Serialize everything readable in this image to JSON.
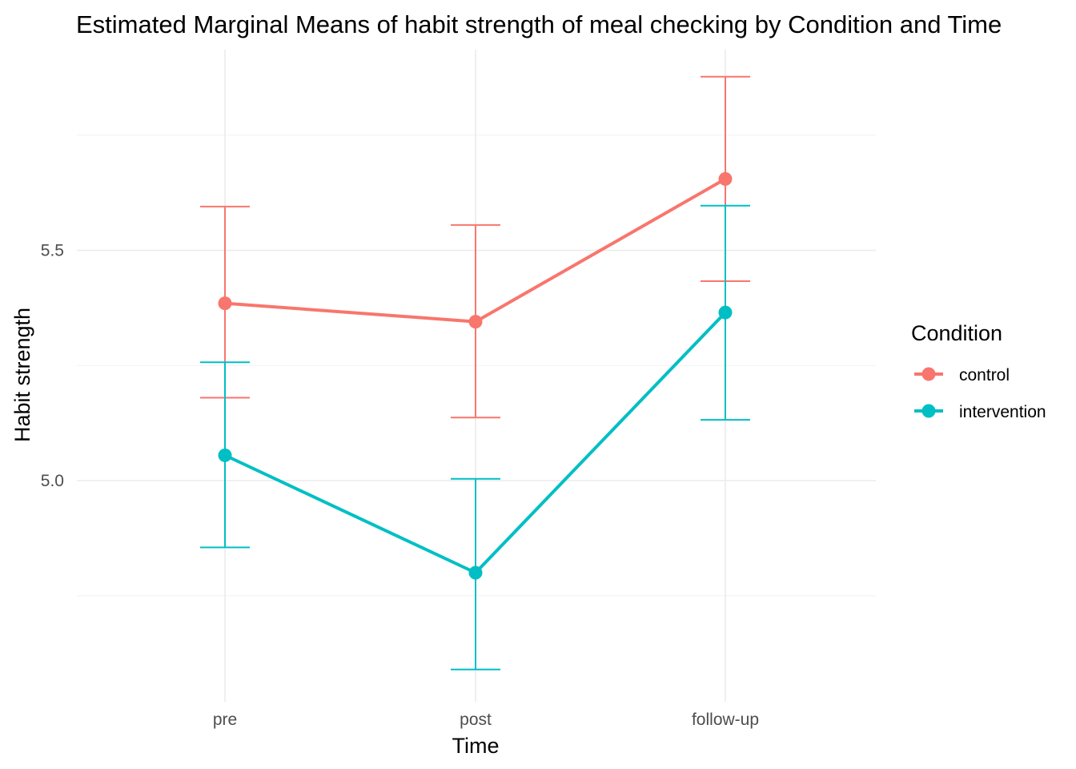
{
  "chart_data": {
    "type": "line",
    "title": "Estimated Marginal Means of habit strength of meal checking by Condition and Time",
    "xlabel": "Time",
    "ylabel": "Habit strength",
    "categories": [
      "pre",
      "post",
      "follow-up"
    ],
    "ylim": [
      4.55,
      5.95
    ],
    "y_major_ticks": [
      5.0,
      5.5
    ],
    "y_tick_labels": [
      "5.0",
      "5.5"
    ],
    "y_minor_gridlines": [
      4.75,
      5.25,
      5.75
    ],
    "grid": true,
    "legend": {
      "title": "Condition",
      "position": "right"
    },
    "series": [
      {
        "name": "control",
        "color": "#F8766D",
        "values": [
          5.385,
          5.345,
          5.655
        ],
        "ci_lower": [
          5.18,
          5.137,
          5.433
        ],
        "ci_upper": [
          5.595,
          5.555,
          5.877
        ]
      },
      {
        "name": "intervention",
        "color": "#00BFC4",
        "values": [
          5.055,
          4.8,
          5.365
        ],
        "ci_lower": [
          4.855,
          4.59,
          5.132
        ],
        "ci_upper": [
          5.257,
          5.004,
          5.597
        ]
      }
    ]
  }
}
